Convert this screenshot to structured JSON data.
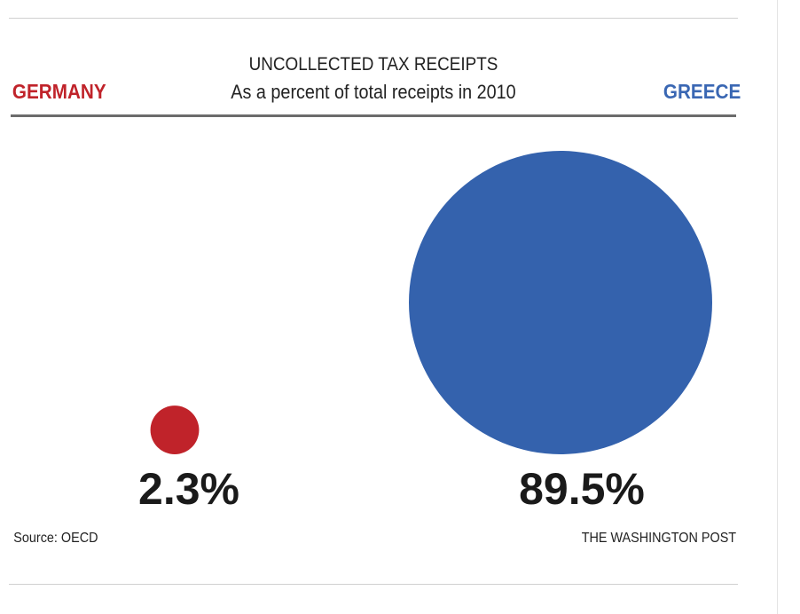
{
  "chart_data": {
    "type": "bubble",
    "title": "UNCOLLECTED TAX RECEIPTS",
    "subtitle": "As a percent of total receipts in 2010",
    "unit": "%",
    "series": [
      {
        "name": "GERMANY",
        "value": 2.3,
        "label": "2.3%",
        "color": "#c0232a"
      },
      {
        "name": "GREECE",
        "value": 89.5,
        "label": "89.5%",
        "color": "#3462ad"
      }
    ],
    "source": "Source: OECD",
    "credit": "THE WASHINGTON POST"
  }
}
